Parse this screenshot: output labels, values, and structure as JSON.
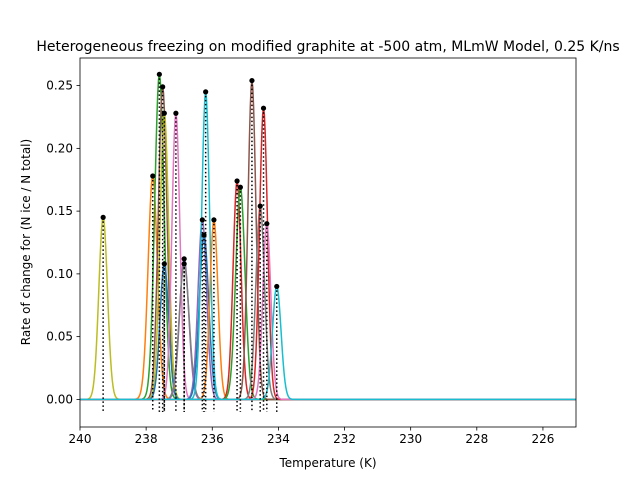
{
  "chart_data": {
    "type": "line",
    "title": "Heterogeneous freezing on modified graphite at -500 atm, MLmW Model, 0.25 K/ns",
    "xlabel": "Temperature (K)",
    "ylabel": "Rate of change for (N ice / N total)",
    "xlim": [
      240,
      225
    ],
    "ylim": [
      -0.022,
      0.272
    ],
    "xticks": [
      240,
      238,
      236,
      234,
      232,
      230,
      228,
      226
    ],
    "yticks": [
      0.0,
      0.05,
      0.1,
      0.15,
      0.2,
      0.25
    ],
    "xtick_labels": [
      "240",
      "238",
      "236",
      "234",
      "232",
      "230",
      "228",
      "226"
    ],
    "ytick_labels": [
      "0.00",
      "0.05",
      "0.10",
      "0.15",
      "0.20",
      "0.25"
    ],
    "grid": false,
    "legend": "none",
    "peak_marker_color": "#000000",
    "peak_line_style": "dotted",
    "series": [
      {
        "color": "#bcbd22",
        "peak_x": 239.3,
        "peak_y": 0.145,
        "width": 0.13
      },
      {
        "color": "#ff7f0e",
        "peak_x": 237.8,
        "peak_y": 0.178,
        "width": 0.14
      },
      {
        "color": "#2ca02c",
        "peak_x": 237.6,
        "peak_y": 0.259,
        "width": 0.14
      },
      {
        "color": "#8c564b",
        "peak_x": 237.5,
        "peak_y": 0.249,
        "width": 0.13
      },
      {
        "color": "#bcbd22",
        "peak_x": 237.45,
        "peak_y": 0.228,
        "width": 0.13
      },
      {
        "color": "#1f77b4",
        "peak_x": 237.45,
        "peak_y": 0.108,
        "width": 0.13
      },
      {
        "color": "#e377c2",
        "peak_x": 237.1,
        "peak_y": 0.228,
        "width": 0.12
      },
      {
        "color": "#9467bd",
        "peak_x": 236.85,
        "peak_y": 0.112,
        "width": 0.14
      },
      {
        "color": "#7f7f7f",
        "peak_x": 236.85,
        "peak_y": 0.108,
        "width": 0.15
      },
      {
        "color": "#9467bd",
        "peak_x": 236.3,
        "peak_y": 0.143,
        "width": 0.13
      },
      {
        "color": "#1f77b4",
        "peak_x": 236.25,
        "peak_y": 0.131,
        "width": 0.14
      },
      {
        "color": "#17becf",
        "peak_x": 236.2,
        "peak_y": 0.245,
        "width": 0.12
      },
      {
        "color": "#ff7f0e",
        "peak_x": 235.95,
        "peak_y": 0.143,
        "width": 0.12
      },
      {
        "color": "#d62728",
        "peak_x": 235.25,
        "peak_y": 0.174,
        "width": 0.12
      },
      {
        "color": "#2ca02c",
        "peak_x": 235.15,
        "peak_y": 0.169,
        "width": 0.14
      },
      {
        "color": "#8c564b",
        "peak_x": 234.8,
        "peak_y": 0.254,
        "width": 0.12
      },
      {
        "color": "#7f7f7f",
        "peak_x": 234.55,
        "peak_y": 0.154,
        "width": 0.13
      },
      {
        "color": "#d62728",
        "peak_x": 234.45,
        "peak_y": 0.232,
        "width": 0.12
      },
      {
        "color": "#e377c2",
        "peak_x": 234.35,
        "peak_y": 0.14,
        "width": 0.12
      },
      {
        "color": "#17becf",
        "peak_x": 234.05,
        "peak_y": 0.09,
        "width": 0.13
      }
    ]
  }
}
